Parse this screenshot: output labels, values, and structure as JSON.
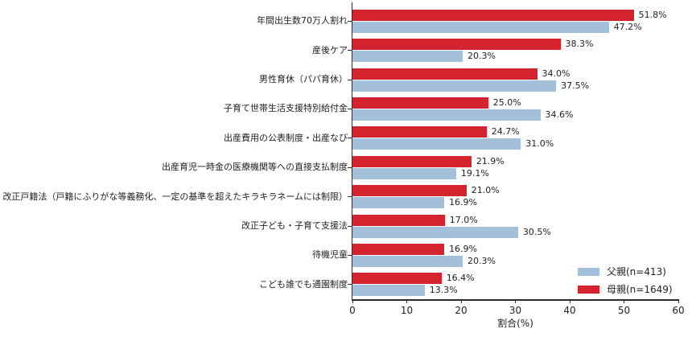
{
  "chart_data": {
    "type": "bar",
    "orientation": "horizontal",
    "title": "",
    "xlabel": "割合(%)",
    "ylabel": "",
    "xlim": [
      0,
      60
    ],
    "xticks": [
      0,
      10,
      20,
      30,
      40,
      50,
      60
    ],
    "grid": false,
    "legend_position": "lower right",
    "bar_order_top_to_bottom": [
      "母親(n=1649)",
      "父親(n=413)"
    ],
    "value_label_format": "{value}%",
    "categories": [
      "年間出生数70万人割れ",
      "産後ケア",
      "男性育休（パパ育休）",
      "子育て世帯生活支援特別給付金",
      "出産費用の公表制度・出産なび",
      "出産育児一時金の医療機関等への直接支払制度",
      "改正戸籍法（戸籍にふりがな等義務化、一定の基準を超えたキラキラネームには制限）",
      "改正子ども・子育て支援法",
      "待機児童",
      "こども誰でも通園制度"
    ],
    "series": [
      {
        "name": "父親(n=413)",
        "color": "#a4bfd9",
        "values": [
          47.2,
          20.3,
          37.5,
          34.6,
          31.0,
          19.1,
          16.9,
          30.5,
          20.3,
          13.3
        ]
      },
      {
        "name": "母親(n=1649)",
        "color": "#d2232e",
        "values": [
          51.8,
          38.3,
          34.0,
          25.0,
          24.7,
          21.9,
          21.0,
          17.0,
          16.9,
          16.4
        ]
      }
    ]
  },
  "colors": {
    "axis": "#2b2b2b",
    "text": "#222222",
    "background": "#ffffff"
  }
}
